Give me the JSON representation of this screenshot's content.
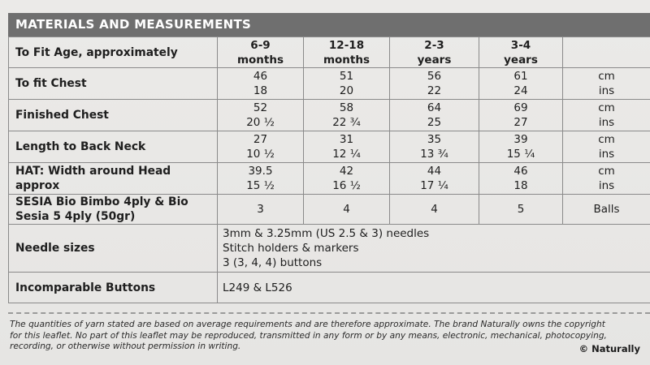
{
  "section_title": "MATERIALS AND MEASUREMENTS",
  "header_row": {
    "label": "To Fit Age, approximately",
    "sizes": [
      {
        "line1": "6-9",
        "line2": "months"
      },
      {
        "line1": "12-18",
        "line2": "months"
      },
      {
        "line1": "2-3",
        "line2": "years"
      },
      {
        "line1": "3-4",
        "line2": "years"
      }
    ],
    "unit": ""
  },
  "rows": [
    {
      "label": "To fit Chest",
      "values": [
        [
          "46",
          "18"
        ],
        [
          "51",
          "20"
        ],
        [
          "56",
          "22"
        ],
        [
          "61",
          "24"
        ]
      ],
      "units": [
        "cm",
        "ins"
      ]
    },
    {
      "label": "Finished Chest",
      "values": [
        [
          "52",
          "20 ½"
        ],
        [
          "58",
          "22 ¾"
        ],
        [
          "64",
          "25"
        ],
        [
          "69",
          "27"
        ]
      ],
      "units": [
        "cm",
        "ins"
      ]
    },
    {
      "label": "Length to Back Neck",
      "values": [
        [
          "27",
          "10 ½"
        ],
        [
          "31",
          "12 ¼"
        ],
        [
          "35",
          "13 ¾"
        ],
        [
          "39",
          "15 ¼"
        ]
      ],
      "units": [
        "cm",
        "ins"
      ]
    },
    {
      "label_line1": "HAT: Width around Head",
      "label_line2": "approx",
      "values": [
        [
          "39.5",
          "15 ½"
        ],
        [
          "42",
          "16 ½"
        ],
        [
          "44",
          "17 ¼"
        ],
        [
          "46",
          "18"
        ]
      ],
      "units": [
        "cm",
        "ins"
      ]
    },
    {
      "label_line1": "SESIA Bio Bimbo 4ply & Bio",
      "label_line2": "Sesia 5 4ply (50gr)",
      "values": [
        "3",
        "4",
        "4",
        "5"
      ],
      "unit": "Balls"
    }
  ],
  "needles": {
    "label": "Needle sizes",
    "lines": [
      "3mm & 3.25mm (US 2.5 & 3) needles",
      "Stitch holders & markers",
      "3 (3, 4, 4) buttons"
    ]
  },
  "buttons": {
    "label": "Incomparable Buttons",
    "value": "L249 & L526"
  },
  "footer": {
    "line1": "The quantities of yarn stated are based on average requirements and are therefore approximate. The brand Naturally owns the copyright",
    "line2": "for this leaflet. No part of this leaflet may be reproduced, transmitted in any form or by any means, electronic, mechanical, photocopying,",
    "line3": "recording, or otherwise without permission in writing.",
    "copyright": "© Naturally"
  }
}
